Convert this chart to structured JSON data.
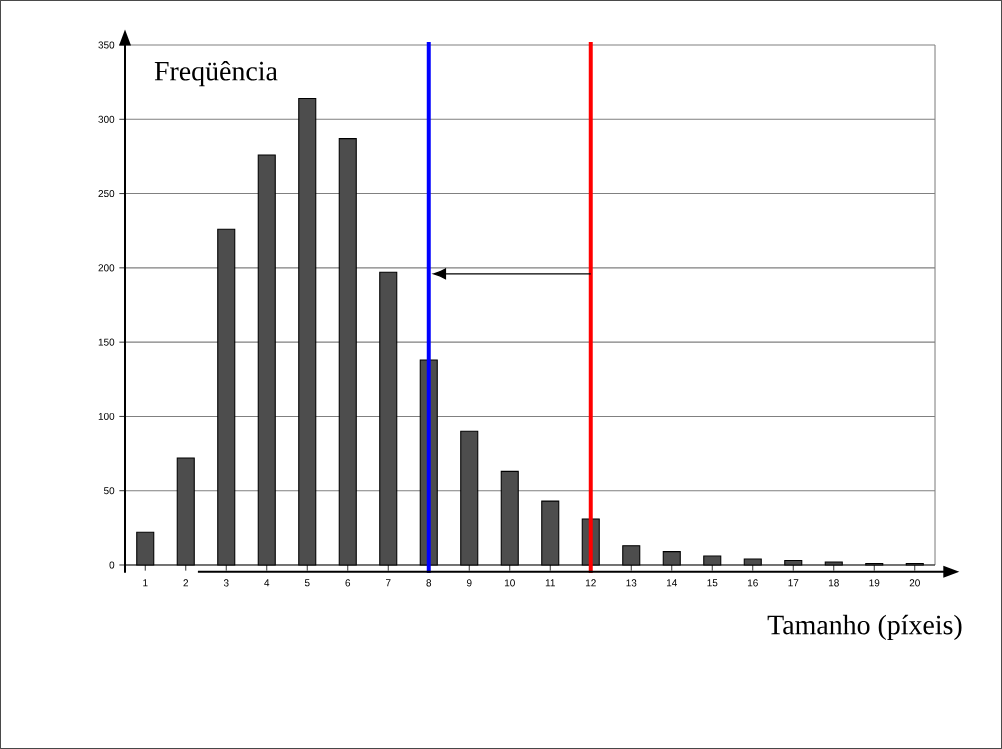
{
  "chart_data": {
    "type": "bar",
    "xlabel": "Tamanho (píxeis)",
    "ylabel": "Freqüência",
    "x": [
      1,
      2,
      3,
      4,
      5,
      6,
      7,
      8,
      9,
      10,
      11,
      12,
      13,
      14,
      15,
      16,
      17,
      18,
      19,
      20
    ],
    "values": [
      22,
      72,
      226,
      276,
      314,
      287,
      197,
      138,
      90,
      63,
      43,
      31,
      13,
      9,
      6,
      4,
      3,
      2,
      1,
      1
    ],
    "color": "#4d4d4d",
    "xlim": [
      0.5,
      20.5
    ],
    "xticks": [
      1,
      2,
      3,
      4,
      5,
      6,
      7,
      8,
      9,
      10,
      11,
      12,
      13,
      14,
      15,
      16,
      17,
      18,
      19,
      20
    ],
    "ylim": [
      0,
      350
    ],
    "yticks": [
      0,
      50,
      100,
      150,
      200,
      250,
      300,
      350
    ],
    "grid": "y",
    "ref_lines": [
      {
        "axis": "x",
        "value": 8,
        "color": "#0000ff"
      },
      {
        "axis": "x",
        "value": 12,
        "color": "#ff0000"
      }
    ]
  }
}
